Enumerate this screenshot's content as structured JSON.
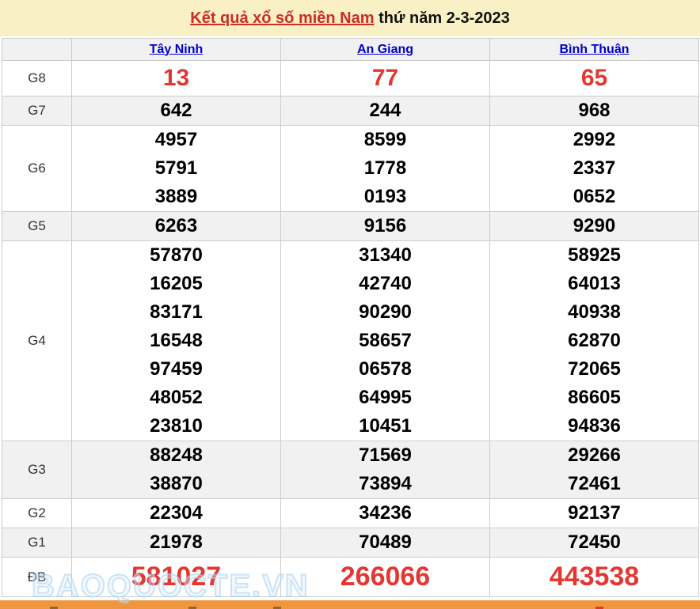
{
  "header": {
    "title_link": "Kết quả xổ số miền Nam",
    "title_suffix": " thứ năm 2-3-2023"
  },
  "table": {
    "provinces": [
      "Tây Ninh",
      "An Giang",
      "Bình Thuận"
    ],
    "rows": [
      {
        "label": "G8",
        "accent": true,
        "cells": [
          [
            "13"
          ],
          [
            "77"
          ],
          [
            "65"
          ]
        ]
      },
      {
        "label": "G7",
        "accent": false,
        "cells": [
          [
            "642"
          ],
          [
            "244"
          ],
          [
            "968"
          ]
        ]
      },
      {
        "label": "G6",
        "accent": false,
        "cells": [
          [
            "4957",
            "5791",
            "3889"
          ],
          [
            "8599",
            "1778",
            "0193"
          ],
          [
            "2992",
            "2337",
            "0652"
          ]
        ]
      },
      {
        "label": "G5",
        "accent": false,
        "cells": [
          [
            "6263"
          ],
          [
            "9156"
          ],
          [
            "9290"
          ]
        ]
      },
      {
        "label": "G4",
        "accent": false,
        "cells": [
          [
            "57870",
            "16205",
            "83171",
            "16548",
            "97459",
            "48052",
            "23810"
          ],
          [
            "31340",
            "42740",
            "90290",
            "58657",
            "06578",
            "64995",
            "10451"
          ],
          [
            "58925",
            "64013",
            "40938",
            "62870",
            "72065",
            "86605",
            "94836"
          ]
        ]
      },
      {
        "label": "G3",
        "accent": false,
        "cells": [
          [
            "88248",
            "38870"
          ],
          [
            "71569",
            "73894"
          ],
          [
            "29266",
            "72461"
          ]
        ]
      },
      {
        "label": "G2",
        "accent": false,
        "cells": [
          [
            "22304"
          ],
          [
            "34236"
          ],
          [
            "92137"
          ]
        ]
      },
      {
        "label": "G1",
        "accent": false,
        "cells": [
          [
            "21978"
          ],
          [
            "70489"
          ],
          [
            "72450"
          ]
        ]
      },
      {
        "label": "ĐB",
        "accent": true,
        "cells": [
          [
            "581027"
          ],
          [
            "266066"
          ],
          [
            "443538"
          ]
        ]
      }
    ]
  },
  "watermark": "BAOQUOCTE.VN",
  "colors": {
    "title_background": "#faf0c5",
    "accent_red": "#e33832",
    "link_blue": "#0000cc",
    "stripe_gray": "#f1f1f1",
    "bottom_bar_orange": "#f0963e"
  }
}
